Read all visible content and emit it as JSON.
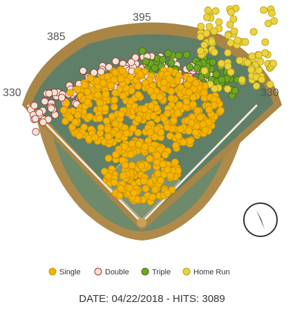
{
  "field": {
    "distance_labels": [
      "395",
      "385",
      "330",
      "330"
    ]
  },
  "legend": [
    {
      "label": "Single"
    },
    {
      "label": "Double"
    },
    {
      "label": "Triple"
    },
    {
      "label": "Home Run"
    }
  ],
  "footer": {
    "text": "DATE: 04/22/2018 - HITS: 3089"
  }
}
